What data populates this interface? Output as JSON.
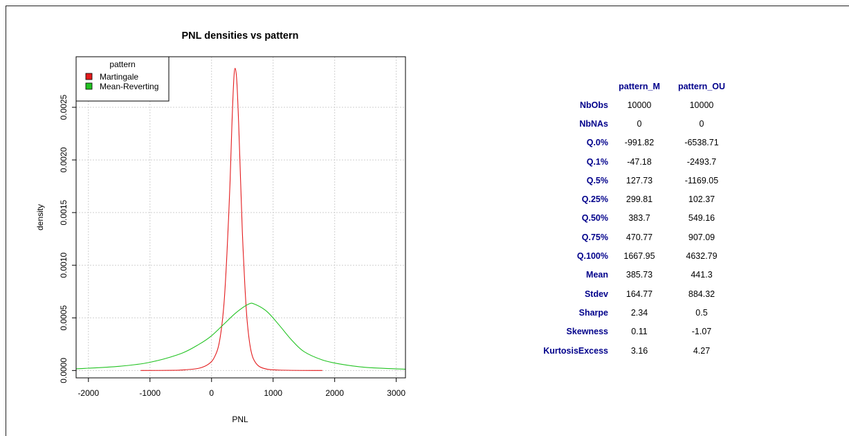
{
  "chart_data": {
    "type": "line",
    "title": "PNL densities vs pattern",
    "xlabel": "PNL",
    "ylabel": "density",
    "xlim": [
      -2200,
      3150
    ],
    "ylim": [
      -7e-05,
      0.00298
    ],
    "x_ticks": [
      -2000,
      -1000,
      0,
      1000,
      2000,
      3000
    ],
    "x_tick_labels": [
      "-2000",
      "-1000",
      "0",
      "1000",
      "2000",
      "3000"
    ],
    "y_ticks": [
      0,
      0.0005,
      0.001,
      0.0015,
      0.002,
      0.0025
    ],
    "y_tick_labels": [
      "0.0000",
      "0.0005",
      "0.0010",
      "0.0015",
      "0.0020",
      "0.0025"
    ],
    "grid": true,
    "legend": {
      "title": "pattern",
      "position": "top-left"
    },
    "series": [
      {
        "name": "Martingale",
        "color": "#e31a1c",
        "points": [
          [
            -1150,
            0
          ],
          [
            -600,
            2e-06
          ],
          [
            -400,
            8e-06
          ],
          [
            -200,
            2.2e-05
          ],
          [
            -50,
            6e-05
          ],
          [
            50,
            0.00013
          ],
          [
            130,
            0.00028
          ],
          [
            200,
            0.00062
          ],
          [
            250,
            0.00111
          ],
          [
            300,
            0.00178
          ],
          [
            330,
            0.00232
          ],
          [
            360,
            0.00275
          ],
          [
            383,
            0.00287
          ],
          [
            410,
            0.00275
          ],
          [
            440,
            0.00235
          ],
          [
            470,
            0.00183
          ],
          [
            500,
            0.00132
          ],
          [
            540,
            0.00082
          ],
          [
            580,
            0.00046
          ],
          [
            640,
            0.00019
          ],
          [
            720,
            7e-05
          ],
          [
            850,
            2e-05
          ],
          [
            1100,
            4e-06
          ],
          [
            1800,
            0
          ]
        ]
      },
      {
        "name": "Mean-Reverting",
        "color": "#22c322",
        "points": [
          [
            -2200,
            1.6e-05
          ],
          [
            -1500,
            4e-05
          ],
          [
            -1000,
            7.8e-05
          ],
          [
            -500,
            0.00016
          ],
          [
            -200,
            0.00025
          ],
          [
            0,
            0.00033
          ],
          [
            200,
            0.00044
          ],
          [
            400,
            0.00055
          ],
          [
            600,
            0.00063
          ],
          [
            700,
            0.00063
          ],
          [
            900,
            0.00056
          ],
          [
            1100,
            0.00043
          ],
          [
            1300,
            0.00029
          ],
          [
            1500,
            0.00018
          ],
          [
            1800,
            0.0001
          ],
          [
            2100,
            6e-05
          ],
          [
            2500,
            3e-05
          ],
          [
            3150,
            1.2e-05
          ]
        ]
      }
    ]
  },
  "stats_table": {
    "headers": [
      "pattern_M",
      "pattern_OU"
    ],
    "rows": [
      {
        "label": "NbObs",
        "m": "10000",
        "ou": "10000"
      },
      {
        "label": "NbNAs",
        "m": "0",
        "ou": "0"
      },
      {
        "label": "Q.0%",
        "m": "-991.82",
        "ou": "-6538.71"
      },
      {
        "label": "Q.1%",
        "m": "-47.18",
        "ou": "-2493.7"
      },
      {
        "label": "Q.5%",
        "m": "127.73",
        "ou": "-1169.05"
      },
      {
        "label": "Q.25%",
        "m": "299.81",
        "ou": "102.37"
      },
      {
        "label": "Q.50%",
        "m": "383.7",
        "ou": "549.16"
      },
      {
        "label": "Q.75%",
        "m": "470.77",
        "ou": "907.09"
      },
      {
        "label": "Q.100%",
        "m": "1667.95",
        "ou": "4632.79"
      },
      {
        "label": "Mean",
        "m": "385.73",
        "ou": "441.3"
      },
      {
        "label": "Stdev",
        "m": "164.77",
        "ou": "884.32"
      },
      {
        "label": "Sharpe",
        "m": "2.34",
        "ou": "0.5"
      },
      {
        "label": "Skewness",
        "m": "0.11",
        "ou": "-1.07"
      },
      {
        "label": "KurtosisExcess",
        "m": "3.16",
        "ou": "4.27"
      }
    ]
  }
}
